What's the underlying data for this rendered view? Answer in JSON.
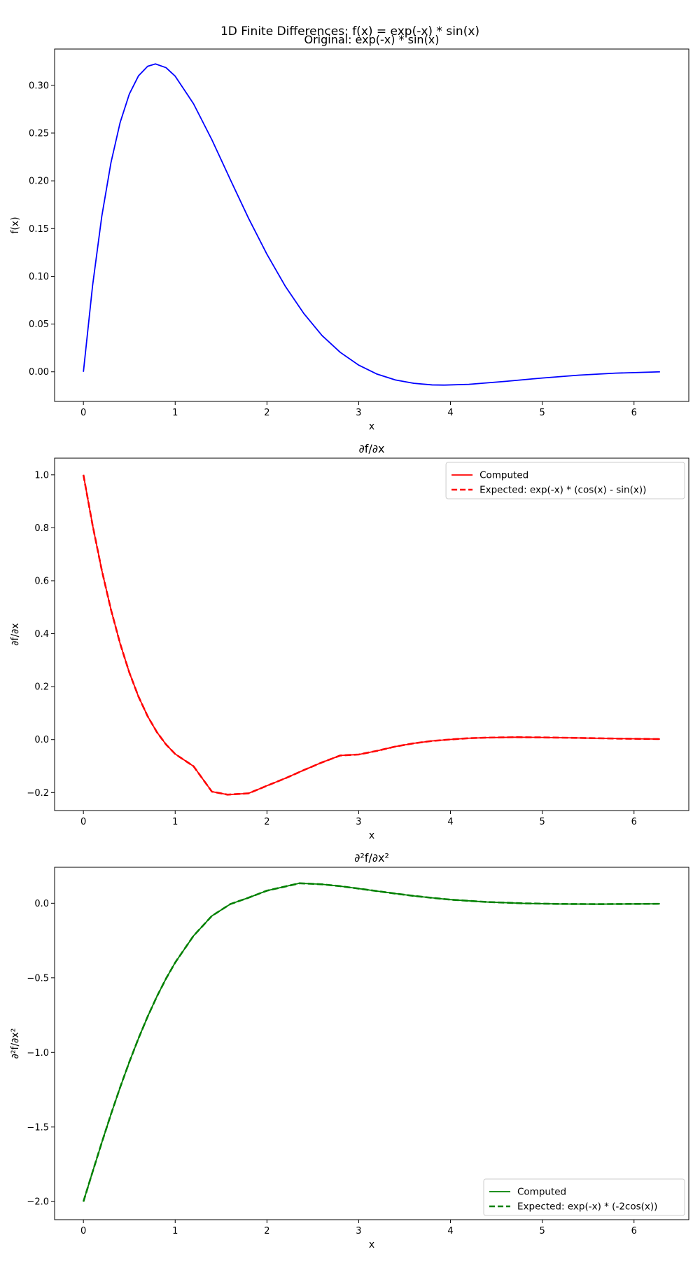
{
  "figure": {
    "suptitle": "1D Finite Differences: f(x) = exp(-x) * sin(x)"
  },
  "chart_data": [
    {
      "type": "line",
      "title": "Original: exp(-x) * sin(x)",
      "xlabel": "x",
      "ylabel": "f(x)",
      "xlim": [
        -0.314,
        6.597
      ],
      "ylim": [
        -0.031,
        0.338
      ],
      "xticks": [
        0,
        1,
        2,
        3,
        4,
        5,
        6
      ],
      "xtick_labels": [
        "0",
        "1",
        "2",
        "3",
        "4",
        "5",
        "6"
      ],
      "yticks": [
        0.0,
        0.05,
        0.1,
        0.15,
        0.2,
        0.25,
        0.3
      ],
      "ytick_labels": [
        "0.00",
        "0.05",
        "0.10",
        "0.15",
        "0.20",
        "0.25",
        "0.30"
      ],
      "grid": false,
      "legend": null,
      "series": [
        {
          "name": "",
          "color": "#0000ff",
          "style": "solid",
          "x": [
            0,
            0.1,
            0.2,
            0.3,
            0.4,
            0.5,
            0.6,
            0.7,
            0.785,
            0.9,
            1.0,
            1.2,
            1.4,
            1.6,
            1.8,
            2.0,
            2.2,
            2.4,
            2.6,
            2.8,
            3.0,
            3.2,
            3.4,
            3.6,
            3.8,
            3.93,
            4.2,
            4.6,
            5.0,
            5.4,
            5.8,
            6.283
          ],
          "y": [
            0,
            0.0903,
            0.1627,
            0.2189,
            0.261,
            0.2908,
            0.3099,
            0.3199,
            0.3224,
            0.3185,
            0.3096,
            0.2807,
            0.243,
            0.2015,
            0.1607,
            0.1231,
            0.0896,
            0.0613,
            0.038,
            0.0203,
            0.007,
            -0.0024,
            -0.0085,
            -0.012,
            -0.0137,
            -0.0139,
            -0.0131,
            -0.01,
            -0.0065,
            -0.0035,
            -0.0014,
            0.0
          ]
        }
      ]
    },
    {
      "type": "line",
      "title": "∂f/∂x",
      "xlabel": "x",
      "ylabel": "∂f/∂x",
      "xlim": [
        -0.314,
        6.597
      ],
      "ylim": [
        -0.268,
        1.063
      ],
      "xticks": [
        0,
        1,
        2,
        3,
        4,
        5,
        6
      ],
      "xtick_labels": [
        "0",
        "1",
        "2",
        "3",
        "4",
        "5",
        "6"
      ],
      "yticks": [
        -0.2,
        0.0,
        0.2,
        0.4,
        0.6,
        0.8,
        1.0
      ],
      "ytick_labels": [
        "−0.2",
        "0.0",
        "0.2",
        "0.4",
        "0.6",
        "0.8",
        "1.0"
      ],
      "grid": false,
      "legend": "upper right",
      "series": [
        {
          "name": "Computed",
          "color": "#ff0000",
          "style": "solid",
          "x": [
            0,
            0.1,
            0.2,
            0.3,
            0.4,
            0.5,
            0.6,
            0.7,
            0.8,
            0.9,
            1.0,
            1.2,
            1.4,
            1.571,
            1.8,
            2.0,
            2.2,
            2.4,
            2.6,
            2.8,
            3.0,
            3.2,
            3.4,
            3.6,
            3.8,
            4.0,
            4.2,
            4.4,
            4.712,
            5.0,
            5.4,
            5.8,
            6.283
          ],
          "y": [
            1.0,
            0.81,
            0.6402,
            0.4912,
            0.3627,
            0.2536,
            0.1626,
            0.0882,
            0.0285,
            -0.0183,
            -0.0544,
            -0.1007,
            -0.1966,
            -0.2079,
            -0.2031,
            -0.1743,
            -0.1462,
            -0.1155,
            -0.0861,
            -0.06,
            -0.0563,
            -0.0425,
            -0.0263,
            -0.014,
            -0.0051,
            0.0005,
            0.0053,
            0.0074,
            0.009,
            0.0082,
            0.0063,
            0.0038,
            0.0019
          ]
        },
        {
          "name": "Expected: exp(-x) * (cos(x) - sin(x))",
          "color": "#ff0000",
          "style": "dashed",
          "x": [
            0,
            0.1,
            0.2,
            0.3,
            0.4,
            0.5,
            0.6,
            0.7,
            0.8,
            0.9,
            1.0,
            1.2,
            1.4,
            1.571,
            1.8,
            2.0,
            2.2,
            2.4,
            2.6,
            2.8,
            3.0,
            3.2,
            3.4,
            3.6,
            3.8,
            4.0,
            4.2,
            4.4,
            4.712,
            5.0,
            5.4,
            5.8,
            6.283
          ],
          "y": [
            1.0,
            0.81,
            0.6402,
            0.4912,
            0.3627,
            0.2536,
            0.1626,
            0.0882,
            0.0285,
            -0.0183,
            -0.0544,
            -0.1007,
            -0.1966,
            -0.2079,
            -0.2031,
            -0.1743,
            -0.1462,
            -0.1155,
            -0.0861,
            -0.06,
            -0.0563,
            -0.0425,
            -0.0263,
            -0.014,
            -0.0051,
            0.0005,
            0.0053,
            0.0074,
            0.009,
            0.0082,
            0.0063,
            0.0038,
            0.0019
          ]
        }
      ]
    },
    {
      "type": "line",
      "title": "∂²f/∂x²",
      "xlabel": "x",
      "ylabel": "∂²f/∂x²",
      "xlim": [
        -0.314,
        6.597
      ],
      "ylim": [
        -2.121,
        0.241
      ],
      "xticks": [
        0,
        1,
        2,
        3,
        4,
        5,
        6
      ],
      "xtick_labels": [
        "0",
        "1",
        "2",
        "3",
        "4",
        "5",
        "6"
      ],
      "yticks": [
        -2.0,
        -1.5,
        -1.0,
        -0.5,
        0.0
      ],
      "ytick_labels": [
        "−2.0",
        "−1.5",
        "−1.0",
        "−0.5",
        "0.0"
      ],
      "grid": false,
      "legend": "lower right",
      "series": [
        {
          "name": "Computed",
          "color": "#008000",
          "style": "solid",
          "x": [
            0,
            0.1,
            0.2,
            0.3,
            0.4,
            0.5,
            0.6,
            0.7,
            0.8,
            0.9,
            1.0,
            1.2,
            1.4,
            1.6,
            1.8,
            2.0,
            2.356,
            2.6,
            2.8,
            3.0,
            3.2,
            3.4,
            3.6,
            3.8,
            4.0,
            4.4,
            4.8,
            5.2,
            5.6,
            6.0,
            6.283
          ],
          "y": [
            -2.0,
            -1.8005,
            -1.6047,
            -1.4149,
            -1.2346,
            -1.0646,
            -0.9061,
            -0.7598,
            -0.626,
            -0.5054,
            -0.3975,
            -0.2184,
            -0.0848,
            -0.0059,
            0.0373,
            0.0844,
            0.134,
            0.127,
            0.1143,
            0.0981,
            0.0814,
            0.0647,
            0.0492,
            0.036,
            0.024,
            0.0083,
            -0.0008,
            -0.0048,
            -0.0058,
            -0.0047,
            -0.0037
          ]
        },
        {
          "name": "Expected: exp(-x) * (-2cos(x))",
          "color": "#008000",
          "style": "dashed",
          "x": [
            0,
            0.1,
            0.2,
            0.3,
            0.4,
            0.5,
            0.6,
            0.7,
            0.8,
            0.9,
            1.0,
            1.2,
            1.4,
            1.6,
            1.8,
            2.0,
            2.356,
            2.6,
            2.8,
            3.0,
            3.2,
            3.4,
            3.6,
            3.8,
            4.0,
            4.4,
            4.8,
            5.2,
            5.6,
            6.0,
            6.283
          ],
          "y": [
            -2.0,
            -1.8005,
            -1.6047,
            -1.4149,
            -1.2346,
            -1.0646,
            -0.9061,
            -0.7598,
            -0.626,
            -0.5054,
            -0.3975,
            -0.2184,
            -0.0848,
            -0.0059,
            0.0373,
            0.0844,
            0.134,
            0.127,
            0.1143,
            0.0981,
            0.0814,
            0.0647,
            0.0492,
            0.036,
            0.024,
            0.0083,
            -0.0008,
            -0.0048,
            -0.0058,
            -0.0047,
            -0.0037
          ]
        }
      ]
    }
  ]
}
